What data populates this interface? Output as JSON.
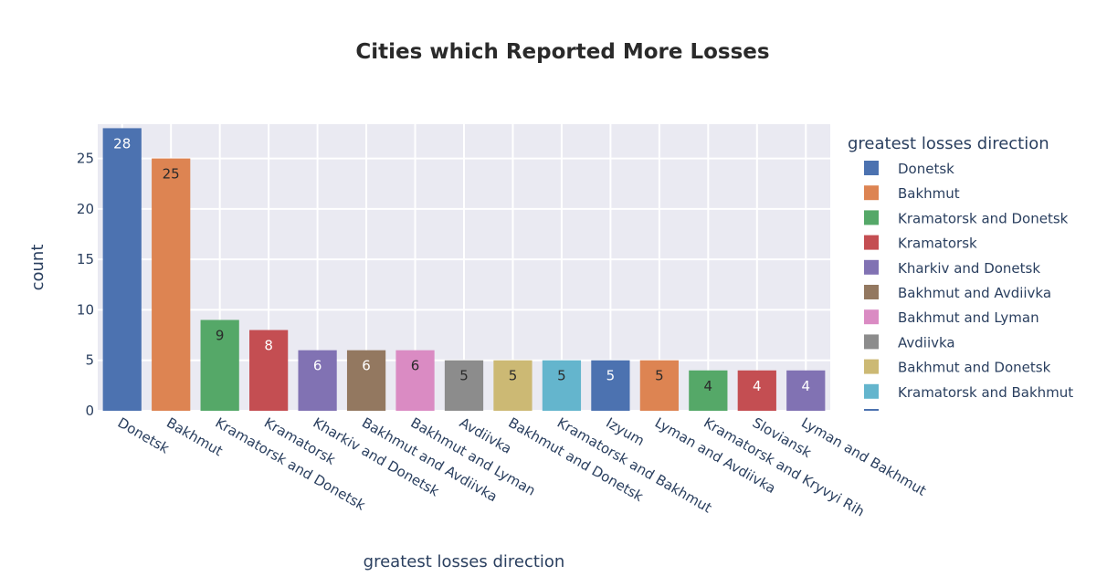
{
  "chart_data": {
    "type": "bar",
    "title": "Cities which Reported More Losses",
    "xlabel": "greatest losses direction",
    "ylabel": "count",
    "ylim": [
      0,
      28.4
    ],
    "yticks": [
      0,
      5,
      10,
      15,
      20,
      25
    ],
    "grid": true,
    "legend_title": "greatest losses direction",
    "legend_position": "right",
    "categories": [
      "Donetsk",
      "Bakhmut",
      "Kramatorsk and Donetsk",
      "Kramatorsk",
      "Kharkiv and Donetsk",
      "Bakhmut and Avdiivka",
      "Bakhmut and Lyman",
      "Avdiivka",
      "Bakhmut and Donetsk",
      "Kramatorsk and Bakhmut",
      "Izyum",
      "Lyman and Avdiivka",
      "Kramatorsk and Kryvyi Rih",
      "Sloviansk",
      "Lyman and Bakhmut"
    ],
    "values": [
      28,
      25,
      9,
      8,
      6,
      6,
      6,
      5,
      5,
      5,
      5,
      5,
      4,
      4,
      4
    ],
    "colors": [
      "#4c72b0",
      "#dd8452",
      "#55a868",
      "#c44e52",
      "#8172b3",
      "#937860",
      "#da8bc3",
      "#8c8c8c",
      "#ccb974",
      "#64b5cd",
      "#4c72b0",
      "#dd8452",
      "#55a868",
      "#c44e52",
      "#8172b3"
    ],
    "label_colors": [
      "#ffffff",
      "#2a2a2a",
      "#2a2a2a",
      "#ffffff",
      "#ffffff",
      "#ffffff",
      "#2a2a2a",
      "#2a2a2a",
      "#2a2a2a",
      "#2a2a2a",
      "#ffffff",
      "#2a2a2a",
      "#2a2a2a",
      "#ffffff",
      "#ffffff"
    ],
    "legend_items": [
      {
        "label": "Donetsk",
        "color": "#4c72b0"
      },
      {
        "label": "Bakhmut",
        "color": "#dd8452"
      },
      {
        "label": "Kramatorsk and Donetsk",
        "color": "#55a868"
      },
      {
        "label": "Kramatorsk",
        "color": "#c44e52"
      },
      {
        "label": "Kharkiv and Donetsk",
        "color": "#8172b3"
      },
      {
        "label": "Bakhmut and Avdiivka",
        "color": "#937860"
      },
      {
        "label": "Bakhmut and Lyman",
        "color": "#da8bc3"
      },
      {
        "label": "Avdiivka",
        "color": "#8c8c8c"
      },
      {
        "label": "Bakhmut and Donetsk",
        "color": "#ccb974"
      },
      {
        "label": "Kramatorsk and Bakhmut",
        "color": "#64b5cd"
      }
    ],
    "plot_bg": "#eaeaf2",
    "grid_color": "#ffffff"
  }
}
